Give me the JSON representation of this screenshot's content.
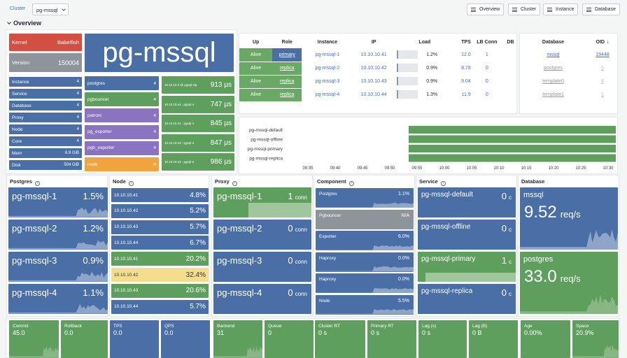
{
  "toolbar": {
    "cluster_label": "Cluster",
    "cluster_value": "pg-mssql",
    "buttons": [
      "Overview",
      "Cluster",
      "Instance",
      "Database"
    ]
  },
  "section": "Overview",
  "summary": {
    "kernel_label": "Kernel",
    "kernel_value": "Babelfish",
    "version_label": "Version",
    "version_value": "150004",
    "cluster_name": "pg-mssql",
    "stats": [
      {
        "label": "Instance",
        "value": "4"
      },
      {
        "label": "Service",
        "value": "4"
      },
      {
        "label": "Database",
        "value": "4"
      },
      {
        "label": "Proxy",
        "value": "4"
      },
      {
        "label": "Node",
        "value": "4"
      },
      {
        "label": "Core",
        "value": "4"
      },
      {
        "label": "Mem",
        "value": "6.9 GiB"
      },
      {
        "label": "Disk",
        "value": "504 GiB"
      }
    ],
    "components": [
      {
        "label": "postgres",
        "value": "4"
      },
      {
        "label": "pgbouncer",
        "value": "4"
      },
      {
        "label": "patroni",
        "value": "4"
      },
      {
        "label": "pg_exporter",
        "value": "4"
      },
      {
        "label": "pgb_exporter",
        "value": "4"
      },
      {
        "label": "node",
        "value": "4"
      }
    ],
    "latency": [
      {
        "label": "10.10.10.3 @ pgsql-vip",
        "value": "913 µs"
      },
      {
        "label": "10.10.10.44 : pgsql-4",
        "value": "747 µs"
      },
      {
        "label": "10.10.10.41 : pgsql-1",
        "value": "845 µs"
      },
      {
        "label": "10.10.10.43 : pgsql-3",
        "value": "847 µs"
      },
      {
        "label": "10.10.10.42 : pgsql-2",
        "value": "986 µs"
      }
    ]
  },
  "instances": {
    "headers": [
      "Up",
      "Role",
      "Instance",
      "IP",
      "Load",
      "TPS",
      "LB Conn",
      "DB"
    ],
    "rows": [
      {
        "up": "Alive",
        "role": "primary",
        "instance": "pg-mssql-1",
        "ip": "10.10.10.41",
        "load": "1.2%",
        "load_frac": 0.012,
        "tps": "12.0",
        "lb": "1"
      },
      {
        "up": "Alive",
        "role": "replica",
        "instance": "pg-mssql-2",
        "ip": "10.10.10.42",
        "load": "0.9%",
        "load_frac": 0.009,
        "tps": "8.78",
        "lb": "0"
      },
      {
        "up": "Alive",
        "role": "replica",
        "instance": "pg-mssql-3",
        "ip": "10.10.10.43",
        "load": "0.9%",
        "load_frac": 0.009,
        "tps": "9.04",
        "lb": "0"
      },
      {
        "up": "Alive",
        "role": "replica",
        "instance": "pg-mssql-4",
        "ip": "10.10.10.44",
        "load": "1.3%",
        "load_frac": 0.013,
        "tps": "11.9",
        "lb": "0"
      }
    ]
  },
  "databases": {
    "headers": [
      "Database",
      "OID"
    ],
    "rows": [
      {
        "name": "mssql",
        "oid": "19448"
      },
      {
        "name": "postgres",
        "oid": "5"
      },
      {
        "name": "template0",
        "oid": "4"
      },
      {
        "name": "template1",
        "oid": "1"
      }
    ]
  },
  "timeline": {
    "services": [
      "pg-mssql-default",
      "pg-mssql-offline",
      "pg-mssql-primary",
      "pg-mssql-replica"
    ],
    "ticks": [
      "09:35",
      "09:40",
      "09:45",
      "09:50",
      "09:55",
      "10:00",
      "10:05",
      "10:10",
      "10:15",
      "10:20",
      "10:25",
      "10:30"
    ]
  },
  "postgres": {
    "title": "Postgres",
    "items": [
      {
        "name": "pg-mssql-1",
        "value": "1.5%"
      },
      {
        "name": "pg-mssql-2",
        "value": "1.2%"
      },
      {
        "name": "pg-mssql-3",
        "value": "0.9%"
      },
      {
        "name": "pg-mssql-4",
        "value": "1.1%"
      }
    ]
  },
  "node": {
    "title": "Node",
    "items": [
      {
        "name": "10.10.10.41",
        "value": "4.8%"
      },
      {
        "name": "10.10.10.42",
        "value": "5.2%"
      },
      {
        "name": "10.10.10.43",
        "value": "5.7%"
      },
      {
        "name": "10.10.10.44",
        "value": "6.7%"
      },
      {
        "name": "10.10.10.41",
        "value": "20.2%"
      },
      {
        "name": "10.10.10.42",
        "value": "32.4%"
      },
      {
        "name": "10.10.10.43",
        "value": "20.6%"
      },
      {
        "name": "10.10.10.44",
        "value": "5.7%"
      }
    ]
  },
  "proxy": {
    "title": "Proxy",
    "items": [
      {
        "name": "pg-mssql-1",
        "value": "1",
        "unit": "conn"
      },
      {
        "name": "pg-mssql-2",
        "value": "0",
        "unit": "conn"
      },
      {
        "name": "pg-mssql-3",
        "value": "0",
        "unit": "conn"
      },
      {
        "name": "pg-mssql-4",
        "value": "0",
        "unit": "conn"
      }
    ]
  },
  "component": {
    "title": "Component",
    "items": [
      {
        "name": "Postgres",
        "value": "1.1%"
      },
      {
        "name": "Pgbouncer",
        "value": "N/A"
      },
      {
        "name": "Exporter",
        "value": "6.0%"
      },
      {
        "name": "Haproxy",
        "value": "0.0%"
      },
      {
        "name": "Haproxy",
        "value": "0.0%"
      },
      {
        "name": "Node",
        "value": "5.5%"
      }
    ]
  },
  "service": {
    "title": "Service",
    "items": [
      {
        "name": "pg-mssql-default",
        "value": "0",
        "unit": "c"
      },
      {
        "name": "pg-mssql-offline",
        "value": "0",
        "unit": "c"
      },
      {
        "name": "pg-mssql-primary",
        "value": "1",
        "unit": "c"
      },
      {
        "name": "pg-mssql-replica",
        "value": "0",
        "unit": "c"
      }
    ]
  },
  "database": {
    "title": "Database",
    "items": [
      {
        "name": "mssql",
        "value": "9.52",
        "unit": "req/s"
      },
      {
        "name": "postgres",
        "value": "33.0",
        "unit": "req/s"
      }
    ]
  },
  "bottom": [
    {
      "label": "Commit",
      "value": "45.0"
    },
    {
      "label": "Rollback",
      "value": "0.0"
    },
    {
      "label": "TPS",
      "value": "0.0"
    },
    {
      "label": "QPS",
      "value": "0.0"
    },
    {
      "label": "Backend",
      "value": "31"
    },
    {
      "label": "Queue",
      "value": "0"
    },
    {
      "label": "Cluster RT",
      "value": "0 s"
    },
    {
      "label": "Primary RT",
      "value": "0 s"
    },
    {
      "label": "Lag (s)",
      "value": "0 s"
    },
    {
      "label": "Lag (B)",
      "value": "0 B"
    },
    {
      "label": "Age",
      "value": "0.00%"
    },
    {
      "label": "Space",
      "value": "20.9%"
    }
  ],
  "colors": {
    "blue": "#4a6ea6",
    "green": "#5f9f5e",
    "red": "#d44f43",
    "gray": "#8d949a",
    "yellow": "#f5dd8e",
    "purple": "#8a73c1",
    "orange": "#f0a53c"
  }
}
